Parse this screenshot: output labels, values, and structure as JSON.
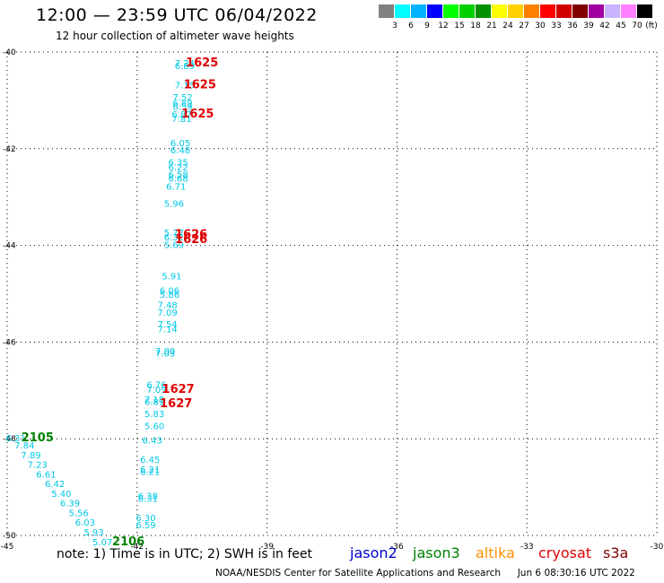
{
  "header": {
    "title": "12:00 — 23:59 UTC 06/04/2022",
    "subtitle": "12 hour collection of altimeter wave heights"
  },
  "legend": {
    "unit": "(ft)",
    "bins": [
      {
        "label": "3",
        "color": "#808080"
      },
      {
        "label": "6",
        "color": "#00ffff"
      },
      {
        "label": "9",
        "color": "#00b4ff"
      },
      {
        "label": "12",
        "color": "#0000ff"
      },
      {
        "label": "15",
        "color": "#00ff00"
      },
      {
        "label": "18",
        "color": "#00d000"
      },
      {
        "label": "21",
        "color": "#009000"
      },
      {
        "label": "24",
        "color": "#ffff00"
      },
      {
        "label": "27",
        "color": "#ffd000"
      },
      {
        "label": "30",
        "color": "#ff8000"
      },
      {
        "label": "33",
        "color": "#ff0000"
      },
      {
        "label": "36",
        "color": "#d00000"
      },
      {
        "label": "39",
        "color": "#800000"
      },
      {
        "label": "42",
        "color": "#a000a0"
      },
      {
        "label": "45",
        "color": "#c8b4ff"
      },
      {
        "label": "70",
        "color": "#ff80ff"
      },
      {
        "label": "",
        "color": "#000000"
      }
    ]
  },
  "map": {
    "lon_range": [
      -45,
      -30
    ],
    "lat_range": [
      -50,
      -40
    ],
    "lon_ticks": [
      "-45",
      "-42",
      "-39",
      "-36",
      "-33",
      "-30"
    ],
    "lat_ticks": [
      "-40",
      "-42",
      "-44",
      "-46",
      "-48",
      "-50"
    ],
    "grid": true
  },
  "observations": {
    "text_color": "#00c8e6",
    "track_a": [
      {
        "lat": -40.3,
        "lon": -40.9,
        "swh": "7.24"
      },
      {
        "lat": -40.35,
        "lon": -40.9,
        "swh": "6.89"
      },
      {
        "lat": -40.75,
        "lon": -40.9,
        "swh": "7.15"
      },
      {
        "lat": -41.0,
        "lon": -40.95,
        "swh": "7.52"
      },
      {
        "lat": -41.12,
        "lon": -40.95,
        "swh": "6.89"
      },
      {
        "lat": -41.2,
        "lon": -40.95,
        "swh": "6.59"
      },
      {
        "lat": -41.35,
        "lon": -40.97,
        "swh": "6.87"
      },
      {
        "lat": -41.45,
        "lon": -40.97,
        "swh": "7.81"
      },
      {
        "lat": -41.95,
        "lon": -41.0,
        "swh": "6.05"
      },
      {
        "lat": -42.1,
        "lon": -41.0,
        "swh": "6.48"
      },
      {
        "lat": -42.35,
        "lon": -41.05,
        "swh": "6.35"
      },
      {
        "lat": -42.45,
        "lon": -41.05,
        "swh": "6.22"
      },
      {
        "lat": -42.6,
        "lon": -41.05,
        "swh": "6.58"
      },
      {
        "lat": -42.68,
        "lon": -41.05,
        "swh": "6.68"
      },
      {
        "lat": -42.85,
        "lon": -41.1,
        "swh": "6.71"
      },
      {
        "lat": -43.2,
        "lon": -41.15,
        "swh": "5.96"
      },
      {
        "lat": -43.8,
        "lon": -41.15,
        "swh": "5.77"
      },
      {
        "lat": -43.9,
        "lon": -41.15,
        "swh": "6.32"
      },
      {
        "lat": -44.05,
        "lon": -41.15,
        "swh": "5.69"
      },
      {
        "lat": -44.7,
        "lon": -41.2,
        "swh": "5.91"
      },
      {
        "lat": -45.0,
        "lon": -41.25,
        "swh": "6.06"
      },
      {
        "lat": -45.08,
        "lon": -41.25,
        "swh": "5.86"
      },
      {
        "lat": -45.3,
        "lon": -41.3,
        "swh": "7.48"
      },
      {
        "lat": -45.45,
        "lon": -41.3,
        "swh": "7.09"
      },
      {
        "lat": -45.7,
        "lon": -41.3,
        "swh": "7.54"
      },
      {
        "lat": -45.8,
        "lon": -41.3,
        "swh": "7.14"
      },
      {
        "lat": -46.25,
        "lon": -41.35,
        "swh": "7.00"
      },
      {
        "lat": -46.3,
        "lon": -41.35,
        "swh": "7.03"
      },
      {
        "lat": -46.95,
        "lon": -41.55,
        "swh": "6.76"
      },
      {
        "lat": -47.05,
        "lon": -41.55,
        "swh": "7.09"
      },
      {
        "lat": -47.25,
        "lon": -41.6,
        "swh": "7.18"
      },
      {
        "lat": -47.3,
        "lon": -41.6,
        "swh": "6.81"
      },
      {
        "lat": -47.55,
        "lon": -41.6,
        "swh": "5.83"
      },
      {
        "lat": -47.8,
        "lon": -41.6,
        "swh": "5.60"
      },
      {
        "lat": -48.1,
        "lon": -41.65,
        "swh": "6.43"
      },
      {
        "lat": -48.5,
        "lon": -41.7,
        "swh": "6.45"
      },
      {
        "lat": -48.7,
        "lon": -41.7,
        "swh": "6.21"
      },
      {
        "lat": -48.75,
        "lon": -41.7,
        "swh": "6.21"
      },
      {
        "lat": -49.25,
        "lon": -41.75,
        "swh": "6.38"
      },
      {
        "lat": -49.3,
        "lon": -41.75,
        "swh": "6.31"
      },
      {
        "lat": -49.7,
        "lon": -41.8,
        "swh": "6.30"
      },
      {
        "lat": -49.85,
        "lon": -41.8,
        "swh": "6.59"
      }
    ],
    "track_b": [
      {
        "lat": -48.05,
        "lon": -44.8,
        "swh": "6.31"
      },
      {
        "lat": -48.2,
        "lon": -44.6,
        "swh": "7.84"
      },
      {
        "lat": -48.4,
        "lon": -44.45,
        "swh": "7.89"
      },
      {
        "lat": -48.6,
        "lon": -44.3,
        "swh": "7.23"
      },
      {
        "lat": -48.8,
        "lon": -44.1,
        "swh": "6.61"
      },
      {
        "lat": -49.0,
        "lon": -43.9,
        "swh": "6.42"
      },
      {
        "lat": -49.2,
        "lon": -43.75,
        "swh": "5.40"
      },
      {
        "lat": -49.4,
        "lon": -43.55,
        "swh": "6.39"
      },
      {
        "lat": -49.6,
        "lon": -43.35,
        "swh": "5.56"
      },
      {
        "lat": -49.8,
        "lon": -43.2,
        "swh": "6.03"
      },
      {
        "lat": -50.0,
        "lon": -43.0,
        "swh": "5.93"
      },
      {
        "lat": -50.2,
        "lon": -42.8,
        "swh": "5.07"
      }
    ],
    "times": [
      {
        "lat": -40.3,
        "lon": -40.5,
        "label": "1625",
        "color": "#e00000"
      },
      {
        "lat": -40.75,
        "lon": -40.55,
        "label": "1625",
        "color": "#e00000"
      },
      {
        "lat": -41.35,
        "lon": -40.6,
        "label": "1625",
        "color": "#e00000"
      },
      {
        "lat": -43.85,
        "lon": -40.75,
        "label": "1626",
        "color": "#e00000"
      },
      {
        "lat": -43.95,
        "lon": -40.75,
        "label": "1626",
        "color": "#e00000"
      },
      {
        "lat": -47.05,
        "lon": -41.05,
        "label": "1627",
        "color": "#e00000"
      },
      {
        "lat": -47.35,
        "lon": -41.1,
        "label": "1627",
        "color": "#e00000"
      },
      {
        "lat": -48.05,
        "lon": -44.3,
        "label": "2105",
        "color": "#008000"
      },
      {
        "lat": -50.2,
        "lon": -42.2,
        "label": "2106",
        "color": "#008000"
      }
    ]
  },
  "footer": {
    "note": "note: 1) Time is in UTC; 2) SWH is in feet",
    "satellites": [
      {
        "name": "jason2",
        "color": "#0000d0"
      },
      {
        "name": "jason3",
        "color": "#008000"
      },
      {
        "name": "altika",
        "color": "#ff9000"
      },
      {
        "name": "cryosat",
        "color": "#e00000"
      },
      {
        "name": "s3a",
        "color": "#800000"
      }
    ],
    "credit": "NOAA/NESDIS Center for Satellite Applications and Research",
    "timestamp": "Jun  6 08:30:16 UTC 2022"
  }
}
